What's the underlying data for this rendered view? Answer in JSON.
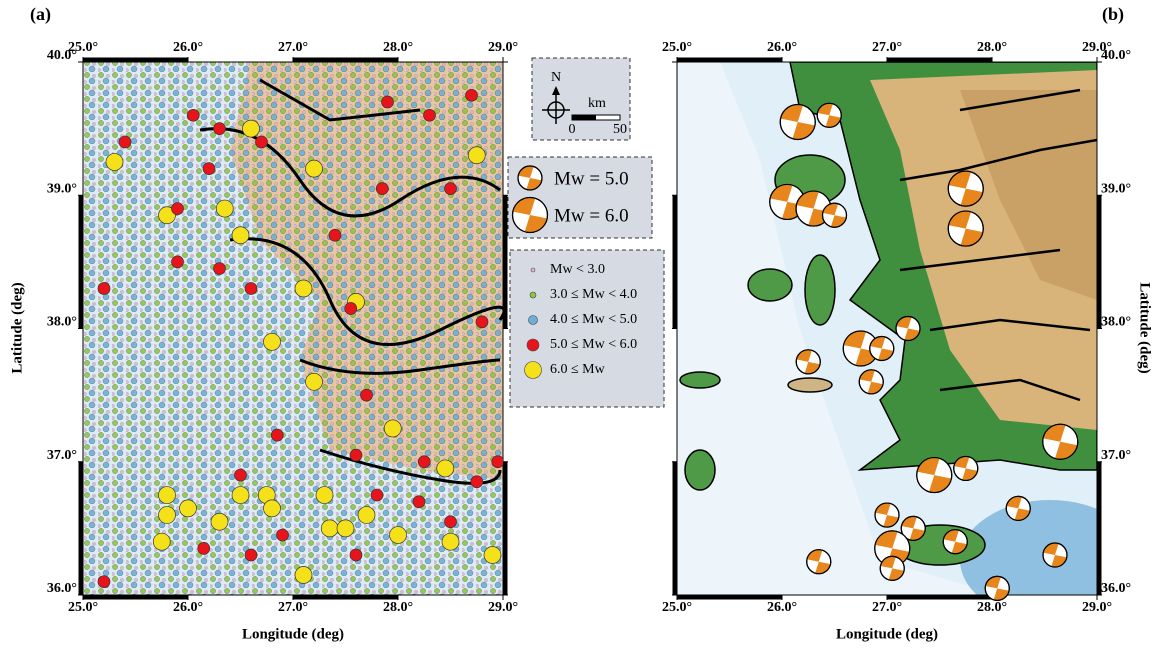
{
  "panels": [
    {
      "label": "(a)"
    },
    {
      "label": "(b)"
    }
  ],
  "lon_range": [
    25,
    29
  ],
  "lat_range": [
    36,
    40
  ],
  "lon_ticks": [
    {
      "value": 25,
      "label": "25.0°"
    },
    {
      "value": 26,
      "label": "26.0°"
    },
    {
      "value": 27,
      "label": "27.0°"
    },
    {
      "value": 28,
      "label": "28.0°"
    },
    {
      "value": 29,
      "label": "29.0°"
    }
  ],
  "lat_ticks": [
    {
      "value": 36,
      "label": "36.0°"
    },
    {
      "value": 37,
      "label": "37.0°"
    },
    {
      "value": 38,
      "label": "38.0°"
    },
    {
      "value": 39,
      "label": "39.0°"
    },
    {
      "value": 40,
      "label": "40.0°"
    }
  ],
  "x_label": "Longitude (deg)",
  "y_label": "Latitude (deg)",
  "north": {
    "label": "N",
    "unit": "km",
    "scale": [
      {
        "value": 0,
        "label": "0"
      },
      {
        "value": 50,
        "label": "50"
      }
    ]
  },
  "mechanism_legend": [
    {
      "mw": 5.0,
      "label": "Mw = 5.0"
    },
    {
      "mw": 6.0,
      "label": "Mw = 6.0"
    }
  ],
  "magnitude_classes": [
    {
      "label": "Mw < 3.0",
      "color": "#e2b4d8"
    },
    {
      "label": "3.0 ≤ Mw < 4.0",
      "color": "#8cc63f"
    },
    {
      "label": "4.0 ≤ Mw < 5.0",
      "color": "#6baed6"
    },
    {
      "label": "5.0 ≤ Mw < 6.0",
      "color": "#e8141b"
    },
    {
      "label": "6.0 ≤ Mw",
      "color": "#f5e11a"
    }
  ],
  "events": [
    {
      "lon": 25.3,
      "lat": 39.25,
      "class": 4
    },
    {
      "lon": 25.8,
      "lat": 38.85,
      "class": 4
    },
    {
      "lon": 26.6,
      "lat": 39.5,
      "class": 4
    },
    {
      "lon": 26.35,
      "lat": 38.9,
      "class": 4
    },
    {
      "lon": 26.5,
      "lat": 38.7,
      "class": 4
    },
    {
      "lon": 27.2,
      "lat": 39.2,
      "class": 4
    },
    {
      "lon": 28.75,
      "lat": 39.3,
      "class": 4
    },
    {
      "lon": 27.6,
      "lat": 38.2,
      "class": 4
    },
    {
      "lon": 26.8,
      "lat": 37.9,
      "class": 4
    },
    {
      "lon": 27.1,
      "lat": 38.3,
      "class": 4
    },
    {
      "lon": 27.2,
      "lat": 37.6,
      "class": 4
    },
    {
      "lon": 27.95,
      "lat": 37.25,
      "class": 4
    },
    {
      "lon": 25.8,
      "lat": 36.75,
      "class": 4
    },
    {
      "lon": 25.8,
      "lat": 36.6,
      "class": 4
    },
    {
      "lon": 26.0,
      "lat": 36.65,
      "class": 4
    },
    {
      "lon": 26.3,
      "lat": 36.55,
      "class": 4
    },
    {
      "lon": 26.5,
      "lat": 36.75,
      "class": 4
    },
    {
      "lon": 26.75,
      "lat": 36.75,
      "class": 4
    },
    {
      "lon": 26.8,
      "lat": 36.65,
      "class": 4
    },
    {
      "lon": 27.3,
      "lat": 36.75,
      "class": 4
    },
    {
      "lon": 27.35,
      "lat": 36.5,
      "class": 4
    },
    {
      "lon": 27.5,
      "lat": 36.5,
      "class": 4
    },
    {
      "lon": 27.7,
      "lat": 36.6,
      "class": 4
    },
    {
      "lon": 27.1,
      "lat": 36.15,
      "class": 4
    },
    {
      "lon": 28.0,
      "lat": 36.45,
      "class": 4
    },
    {
      "lon": 28.45,
      "lat": 36.95,
      "class": 4
    },
    {
      "lon": 28.5,
      "lat": 36.4,
      "class": 4
    },
    {
      "lon": 28.9,
      "lat": 36.3,
      "class": 4
    },
    {
      "lon": 25.75,
      "lat": 36.4,
      "class": 4
    },
    {
      "lon": 26.05,
      "lat": 39.6,
      "class": 3
    },
    {
      "lon": 26.3,
      "lat": 39.5,
      "class": 3
    },
    {
      "lon": 26.7,
      "lat": 39.4,
      "class": 3
    },
    {
      "lon": 26.2,
      "lat": 39.2,
      "class": 3
    },
    {
      "lon": 25.9,
      "lat": 38.9,
      "class": 3
    },
    {
      "lon": 26.3,
      "lat": 38.45,
      "class": 3
    },
    {
      "lon": 26.6,
      "lat": 38.3,
      "class": 3
    },
    {
      "lon": 27.4,
      "lat": 38.7,
      "class": 3
    },
    {
      "lon": 27.85,
      "lat": 39.05,
      "class": 3
    },
    {
      "lon": 28.5,
      "lat": 39.05,
      "class": 3
    },
    {
      "lon": 28.3,
      "lat": 39.6,
      "class": 3
    },
    {
      "lon": 28.7,
      "lat": 39.75,
      "class": 3
    },
    {
      "lon": 27.55,
      "lat": 38.15,
      "class": 3
    },
    {
      "lon": 28.8,
      "lat": 38.05,
      "class": 3
    },
    {
      "lon": 25.4,
      "lat": 39.4,
      "class": 3
    },
    {
      "lon": 25.2,
      "lat": 38.3,
      "class": 3
    },
    {
      "lon": 25.9,
      "lat": 38.5,
      "class": 3
    },
    {
      "lon": 26.85,
      "lat": 37.2,
      "class": 3
    },
    {
      "lon": 27.6,
      "lat": 37.05,
      "class": 3
    },
    {
      "lon": 28.25,
      "lat": 37.0,
      "class": 3
    },
    {
      "lon": 27.8,
      "lat": 36.75,
      "class": 3
    },
    {
      "lon": 28.2,
      "lat": 36.7,
      "class": 3
    },
    {
      "lon": 28.5,
      "lat": 36.55,
      "class": 3
    },
    {
      "lon": 26.15,
      "lat": 36.35,
      "class": 3
    },
    {
      "lon": 26.6,
      "lat": 36.3,
      "class": 3
    },
    {
      "lon": 26.9,
      "lat": 36.45,
      "class": 3
    },
    {
      "lon": 27.6,
      "lat": 36.3,
      "class": 3
    },
    {
      "lon": 28.75,
      "lat": 36.85,
      "class": 3
    },
    {
      "lon": 27.7,
      "lat": 37.5,
      "class": 3
    },
    {
      "lon": 26.5,
      "lat": 36.9,
      "class": 3
    },
    {
      "lon": 28.95,
      "lat": 37.0,
      "class": 3
    },
    {
      "lon": 25.2,
      "lat": 36.1,
      "class": 3
    },
    {
      "lon": 27.9,
      "lat": 39.7,
      "class": 3
    }
  ],
  "mechanisms": [
    {
      "lon": 26.15,
      "lat": 39.55,
      "mw": 6.0
    },
    {
      "lon": 26.45,
      "lat": 39.6,
      "mw": 5.0
    },
    {
      "lon": 27.75,
      "lat": 39.05,
      "mw": 6.0
    },
    {
      "lon": 26.05,
      "lat": 38.95,
      "mw": 6.0
    },
    {
      "lon": 26.3,
      "lat": 38.9,
      "mw": 6.0
    },
    {
      "lon": 26.5,
      "lat": 38.85,
      "mw": 5.0
    },
    {
      "lon": 27.75,
      "lat": 38.75,
      "mw": 6.0
    },
    {
      "lon": 27.2,
      "lat": 38.0,
      "mw": 5.0
    },
    {
      "lon": 26.75,
      "lat": 37.85,
      "mw": 6.0
    },
    {
      "lon": 26.95,
      "lat": 37.85,
      "mw": 5.0
    },
    {
      "lon": 26.85,
      "lat": 37.6,
      "mw": 5.0
    },
    {
      "lon": 26.25,
      "lat": 37.75,
      "mw": 5.0
    },
    {
      "lon": 27.45,
      "lat": 36.9,
      "mw": 6.0
    },
    {
      "lon": 27.75,
      "lat": 36.95,
      "mw": 5.0
    },
    {
      "lon": 28.65,
      "lat": 37.15,
      "mw": 6.0
    },
    {
      "lon": 27.0,
      "lat": 36.6,
      "mw": 5.0
    },
    {
      "lon": 27.25,
      "lat": 36.5,
      "mw": 5.0
    },
    {
      "lon": 27.05,
      "lat": 36.35,
      "mw": 6.0
    },
    {
      "lon": 27.05,
      "lat": 36.2,
      "mw": 5.0
    },
    {
      "lon": 26.35,
      "lat": 36.25,
      "mw": 5.0
    },
    {
      "lon": 27.65,
      "lat": 36.4,
      "mw": 5.0
    },
    {
      "lon": 28.25,
      "lat": 36.65,
      "mw": 5.0
    },
    {
      "lon": 28.6,
      "lat": 36.3,
      "mw": 5.0
    },
    {
      "lon": 28.05,
      "lat": 36.05,
      "mw": 5.0
    }
  ]
}
